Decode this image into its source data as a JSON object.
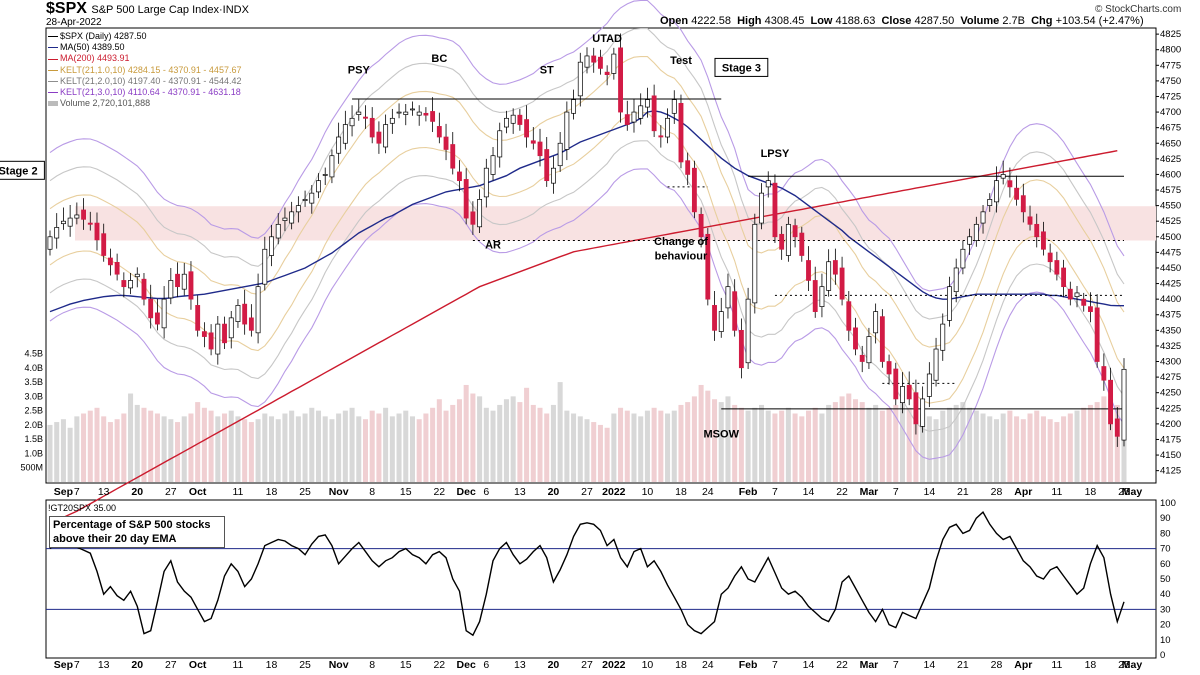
{
  "header": {
    "symbol": "$SPX",
    "name": "S&P 500 Large Cap Index",
    "exchange": "INDX",
    "date": "28-Apr-2022",
    "open_label": "Open",
    "open": "4222.58",
    "high_label": "High",
    "high": "4308.45",
    "low_label": "Low",
    "low": "4188.63",
    "close_label": "Close",
    "close": "4287.50",
    "volume_label": "Volume",
    "volume": "2.7B",
    "chg_label": "Chg",
    "chg": "+103.54 (+2.47%)",
    "logo": "© StockCharts.com"
  },
  "legend": [
    {
      "text": "$SPX (Daily) 4287.50",
      "color": "#000000"
    },
    {
      "text": "MA(50) 4389.50",
      "color": "#1f2a8a"
    },
    {
      "text": "MA(200) 4493.91",
      "color": "#cc1b2e"
    },
    {
      "text": "KELT(21,1.0,10) 4284.15 - 4370.91 - 4457.67",
      "color": "#c89a3c"
    },
    {
      "text": "KELT(21,2.0,10) 4197.40 - 4370.91 - 4544.42",
      "color": "#8e8e8e"
    },
    {
      "text": "KELT(21,3.0,10) 4110.64 - 4370.91 - 4631.18",
      "color": "#8a3cc4"
    },
    {
      "text": "Volume 2,720,101,888",
      "color": "#bbbbbb"
    }
  ],
  "lower": {
    "legend": "!GT20SPX 35.00",
    "box_line1": "Percentage of S&P 500 stocks",
    "box_line2": "above their 20 day EMA"
  },
  "colors": {
    "up_candle": "#ffffff",
    "down_candle": "#d21b45",
    "ma50": "#1f2a8a",
    "ma200": "#cc1b2e",
    "kelt1": "#e8cf9e",
    "kelt2": "#c7c7c7",
    "kelt3": "#b99be6",
    "zone": "#f8e2e2",
    "volume": "#d8d8d8"
  },
  "chart_data": [
    {
      "type": "candlestick",
      "title": "$SPX (Daily) 4287.50",
      "y_ticks": [
        4125,
        4150,
        4175,
        4200,
        4225,
        4250,
        4275,
        4300,
        4325,
        4350,
        4375,
        4400,
        4425,
        4450,
        4475,
        4500,
        4525,
        4550,
        4575,
        4600,
        4625,
        4650,
        4675,
        4700,
        4725,
        4750,
        4775,
        4800,
        4825
      ],
      "ylim": [
        4110,
        4830
      ],
      "volume_ticks": [
        "500M",
        "1.0B",
        "1.5B",
        "2.0B",
        "2.5B",
        "3.0B",
        "3.5B",
        "4.0B",
        "4.5B"
      ],
      "x_ticks": [
        {
          "label": "Sep",
          "i": 2
        },
        {
          "label": "7",
          "i": 4
        },
        {
          "label": "13",
          "i": 8
        },
        {
          "label": "20",
          "i": 13
        },
        {
          "label": "27",
          "i": 18
        },
        {
          "label": "Oct",
          "i": 22
        },
        {
          "label": "11",
          "i": 28
        },
        {
          "label": "18",
          "i": 33
        },
        {
          "label": "25",
          "i": 38
        },
        {
          "label": "Nov",
          "i": 43
        },
        {
          "label": "8",
          "i": 48
        },
        {
          "label": "15",
          "i": 53
        },
        {
          "label": "22",
          "i": 58
        },
        {
          "label": "Dec",
          "i": 62
        },
        {
          "label": "6",
          "i": 65
        },
        {
          "label": "13",
          "i": 70
        },
        {
          "label": "20",
          "i": 75
        },
        {
          "label": "27",
          "i": 80
        },
        {
          "label": "2022",
          "i": 84
        },
        {
          "label": "10",
          "i": 89
        },
        {
          "label": "18",
          "i": 94
        },
        {
          "label": "24",
          "i": 98
        },
        {
          "label": "Feb",
          "i": 104
        },
        {
          "label": "7",
          "i": 108
        },
        {
          "label": "14",
          "i": 113
        },
        {
          "label": "22",
          "i": 118
        },
        {
          "label": "Mar",
          "i": 122
        },
        {
          "label": "7",
          "i": 126
        },
        {
          "label": "14",
          "i": 131
        },
        {
          "label": "21",
          "i": 136
        },
        {
          "label": "28",
          "i": 141
        },
        {
          "label": "Apr",
          "i": 145
        },
        {
          "label": "11",
          "i": 150
        },
        {
          "label": "18",
          "i": 155
        },
        {
          "label": "25",
          "i": 160
        },
        {
          "label": "May",
          "i": 165
        }
      ],
      "annotations": [
        {
          "text": "PSY",
          "i": 46,
          "price": 4767
        },
        {
          "text": "BC",
          "i": 58,
          "price": 4785
        },
        {
          "text": "ST",
          "i": 74,
          "price": 4767
        },
        {
          "text": "UTAD",
          "i": 83,
          "price": 4817
        },
        {
          "text": "Test",
          "i": 94,
          "price": 4782
        },
        {
          "text": "LPSY",
          "i": 108,
          "price": 4633
        },
        {
          "text": "AR",
          "i": 66,
          "price": 4486
        },
        {
          "text": "Change of",
          "i": 94,
          "price": 4492
        },
        {
          "text": "behaviour",
          "i": 94,
          "price": 4468
        },
        {
          "text": "MSOW",
          "i": 100,
          "price": 4183
        },
        {
          "text": "Stage 2",
          "i": -2,
          "price": 4605,
          "boxed": true
        },
        {
          "text": "Stage 3",
          "i": 103,
          "price": 4770,
          "boxed": true
        }
      ],
      "levels": [
        {
          "price": 4721,
          "i_start": 45,
          "i_end": 100,
          "style": "solid"
        },
        {
          "price": 4597,
          "i_start": 104,
          "i_end": 164,
          "style": "solid"
        },
        {
          "price": 4224,
          "i_start": 100,
          "i_end": 164,
          "style": "solid"
        },
        {
          "price": 4494,
          "i_start": 63,
          "i_end": 164,
          "style": "dotted"
        },
        {
          "price": 4580,
          "i_start": 92,
          "i_end": 98,
          "style": "dotted"
        },
        {
          "price": 4406,
          "i_start": 108,
          "i_end": 160,
          "style": "dotted"
        },
        {
          "price": 4265,
          "i_start": 124,
          "i_end": 135,
          "style": "dotted"
        }
      ],
      "zone": {
        "price_low": 4494,
        "price_high": 4549
      },
      "kelt3_upper_extra": [
        4631.18
      ],
      "closes": [
        4500,
        4515,
        4525,
        4530,
        4535,
        4528,
        4520,
        4495,
        4470,
        4455,
        4440,
        4420,
        4430,
        4440,
        4400,
        4370,
        4360,
        4400,
        4430,
        4420,
        4440,
        4400,
        4350,
        4340,
        4320,
        4360,
        4330,
        4370,
        4390,
        4360,
        4350,
        4420,
        4480,
        4500,
        4520,
        4530,
        4540,
        4550,
        4560,
        4570,
        4590,
        4600,
        4630,
        4660,
        4680,
        4690,
        4700,
        4690,
        4660,
        4650,
        4680,
        4690,
        4700,
        4700,
        4705,
        4700,
        4695,
        4685,
        4660,
        4640,
        4610,
        4590,
        4530,
        4520,
        4560,
        4610,
        4630,
        4670,
        4690,
        4695,
        4680,
        4660,
        4650,
        4630,
        4590,
        4610,
        4650,
        4700,
        4720,
        4780,
        4790,
        4780,
        4770,
        4760,
        4793,
        4700,
        4680,
        4700,
        4710,
        4720,
        4670,
        4660,
        4690,
        4720,
        4620,
        4600,
        4540,
        4500,
        4400,
        4350,
        4380,
        4420,
        4350,
        4290,
        4400,
        4520,
        4570,
        4590,
        4500,
        4480,
        4520,
        4500,
        4470,
        4430,
        4380,
        4420,
        4460,
        4440,
        4400,
        4350,
        4320,
        4300,
        4340,
        4380,
        4300,
        4280,
        4240,
        4260,
        4240,
        4200,
        4240,
        4280,
        4320,
        4360,
        4420,
        4450,
        4480,
        4500,
        4520,
        4540,
        4560,
        4590,
        4600,
        4580,
        4560,
        4540,
        4520,
        4500,
        4480,
        4460,
        4440,
        4420,
        4400,
        4410,
        4390,
        4380,
        4300,
        4270,
        4200,
        4180,
        4287.5
      ],
      "volumes": [
        2.0,
        2.1,
        2.2,
        1.9,
        2.3,
        2.4,
        2.5,
        2.6,
        2.3,
        2.1,
        2.2,
        2.4,
        3.1,
        2.7,
        2.6,
        2.5,
        2.4,
        2.3,
        2.2,
        2.1,
        2.3,
        2.4,
        2.8,
        2.6,
        2.5,
        2.3,
        2.4,
        2.5,
        2.3,
        2.2,
        2.1,
        2.2,
        2.4,
        2.3,
        2.2,
        2.4,
        2.5,
        2.3,
        2.4,
        2.6,
        2.5,
        2.3,
        2.2,
        2.4,
        2.5,
        2.6,
        2.3,
        2.2,
        2.5,
        2.4,
        2.6,
        2.3,
        2.4,
        2.5,
        2.3,
        2.2,
        2.4,
        2.6,
        2.9,
        2.5,
        2.7,
        2.9,
        3.4,
        3.1,
        3.0,
        2.6,
        2.5,
        2.7,
        2.9,
        3.0,
        2.8,
        3.3,
        2.7,
        2.6,
        2.4,
        2.7,
        3.5,
        2.5,
        2.4,
        2.3,
        2.2,
        2.1,
        2.0,
        1.9,
        2.4,
        2.6,
        2.5,
        2.4,
        2.3,
        2.5,
        2.6,
        2.5,
        2.4,
        2.5,
        2.7,
        2.8,
        3.0,
        3.4,
        3.2,
        2.9,
        2.8,
        3.0,
        2.7,
        2.6,
        2.5,
        2.6,
        2.7,
        2.5,
        2.4,
        2.5,
        2.6,
        2.4,
        2.3,
        2.5,
        2.6,
        2.4,
        2.7,
        2.8,
        3.0,
        3.1,
        2.9,
        2.8,
        2.6,
        2.7,
        2.5,
        2.6,
        2.7,
        2.8,
        2.6,
        2.5,
        2.4,
        2.3,
        2.2,
        2.5,
        2.6,
        2.7,
        2.8,
        2.6,
        2.5,
        2.4,
        2.3,
        2.2,
        2.4,
        2.5,
        2.3,
        2.2,
        2.4,
        2.5,
        2.3,
        2.2,
        2.1,
        2.3,
        2.4,
        2.5,
        2.6,
        2.7,
        2.8,
        3.0,
        2.9,
        2.7,
        2.72
      ],
      "ma50": [
        4380,
        4384,
        4388,
        4392,
        4395,
        4398,
        4400,
        4402,
        4404,
        4405,
        4406,
        4406,
        4405,
        4404,
        4403,
        4402,
        4401,
        4401,
        4402,
        4404,
        4405,
        4406,
        4407,
        4408,
        4410,
        4412,
        4414,
        4416,
        4418,
        4420,
        4422,
        4424,
        4426,
        4430,
        4434,
        4438,
        4442,
        4446,
        4450,
        4456,
        4462,
        4468,
        4474,
        4482,
        4490,
        4498,
        4506,
        4512,
        4518,
        4524,
        4530,
        4534,
        4540,
        4546,
        4552,
        4556,
        4560,
        4564,
        4568,
        4572,
        4574,
        4576,
        4578,
        4580,
        4582,
        4586,
        4590,
        4594,
        4598,
        4604,
        4610,
        4614,
        4618,
        4622,
        4626,
        4630,
        4634,
        4640,
        4646,
        4652,
        4656,
        4660,
        4664,
        4668,
        4672,
        4676,
        4680,
        4684,
        4690,
        4700,
        4702,
        4700,
        4696,
        4690,
        4684,
        4676,
        4666,
        4656,
        4646,
        4636,
        4626,
        4618,
        4610,
        4604,
        4598,
        4594,
        4590,
        4586,
        4582,
        4578,
        4572,
        4566,
        4558,
        4550,
        4542,
        4534,
        4526,
        4518,
        4510,
        4500,
        4492,
        4484,
        4476,
        4468,
        4460,
        4452,
        4444,
        4436,
        4428,
        4420,
        4412,
        4406,
        4402,
        4400,
        4400,
        4402,
        4404,
        4406,
        4408,
        4408,
        4408,
        4408,
        4408,
        4408,
        4408,
        4408,
        4408,
        4408,
        4408,
        4406,
        4406,
        4404,
        4402,
        4400,
        4398,
        4396,
        4394,
        4392,
        4390,
        4389.5,
        4389.5
      ],
      "ma200": [
        4040,
        4045,
        4050,
        4055,
        4060,
        4066,
        4072,
        4078,
        4084,
        4090,
        4096,
        4102,
        4108,
        4114,
        4120,
        4126,
        4132,
        4138,
        4144,
        4150,
        4156,
        4162,
        4168,
        4174,
        4180,
        4186,
        4192,
        4198,
        4204,
        4210,
        4216,
        4222,
        4228,
        4234,
        4240,
        4246,
        4252,
        4258,
        4264,
        4270,
        4276,
        4282,
        4288,
        4294,
        4300,
        4306,
        4312,
        4318,
        4324,
        4330,
        4336,
        4342,
        4348,
        4354,
        4360,
        4366,
        4372,
        4378,
        4384,
        4390,
        4396,
        4402,
        4408,
        4414,
        4420,
        4424,
        4428,
        4432,
        4436,
        4440,
        4444,
        4448,
        4452,
        4456,
        4460,
        4464,
        4468,
        4472,
        4476,
        4478,
        4480,
        4482,
        4484,
        4486,
        4488,
        4490,
        4492,
        4494,
        4496,
        4498,
        4500,
        4502,
        4504,
        4506,
        4508,
        4510,
        4512,
        4514,
        4516,
        4518,
        4520,
        4522,
        4524,
        4526,
        4528,
        4530,
        4532,
        4534,
        4536,
        4538,
        4540,
        4542,
        4544,
        4546,
        4548,
        4550,
        4552,
        4554,
        4556,
        4558,
        4560,
        4562,
        4564,
        4566,
        4568,
        4570,
        4572,
        4574,
        4576,
        4578,
        4580,
        4582,
        4584,
        4586,
        4588,
        4590,
        4592,
        4594,
        4596,
        4598,
        4600,
        4602,
        4604,
        4606,
        4608,
        4610,
        4612,
        4614,
        4616,
        4618,
        4620,
        4622,
        4624,
        4626,
        4628,
        4630,
        4632,
        4634,
        4636,
        4638,
        4493.91
      ]
    },
    {
      "type": "line",
      "title": "!GT20SPX 35.00",
      "series_name": "Percentage of S&P 500 stocks above their 20 day EMA",
      "ylim": [
        0,
        100
      ],
      "y_ticks": [
        0,
        10,
        20,
        30,
        40,
        50,
        60,
        70,
        80,
        90,
        100
      ],
      "reference_lines": [
        70,
        30
      ],
      "values": [
        70,
        74,
        72,
        74,
        71,
        69,
        67,
        55,
        40,
        45,
        39,
        36,
        42,
        32,
        14,
        16,
        35,
        55,
        62,
        48,
        42,
        38,
        30,
        22,
        24,
        36,
        52,
        60,
        55,
        45,
        50,
        60,
        72,
        74,
        76,
        75,
        72,
        70,
        66,
        73,
        78,
        79,
        72,
        60,
        65,
        70,
        74,
        68,
        62,
        58,
        62,
        64,
        68,
        70,
        66,
        64,
        60,
        66,
        68,
        64,
        50,
        42,
        16,
        13,
        22,
        40,
        62,
        70,
        74,
        66,
        60,
        63,
        68,
        72,
        64,
        48,
        56,
        66,
        78,
        86,
        87,
        86,
        82,
        72,
        76,
        64,
        58,
        68,
        70,
        58,
        62,
        55,
        46,
        38,
        30,
        20,
        16,
        14,
        18,
        22,
        40,
        44,
        52,
        58,
        50,
        48,
        56,
        64,
        54,
        44,
        40,
        42,
        38,
        32,
        28,
        24,
        22,
        30,
        48,
        52,
        44,
        36,
        28,
        22,
        30,
        20,
        18,
        28,
        26,
        24,
        34,
        44,
        62,
        76,
        84,
        86,
        80,
        82,
        90,
        94,
        86,
        80,
        76,
        78,
        70,
        62,
        58,
        52,
        50,
        56,
        58,
        52,
        46,
        40,
        44,
        60,
        72,
        64,
        40,
        22,
        35
      ]
    }
  ]
}
